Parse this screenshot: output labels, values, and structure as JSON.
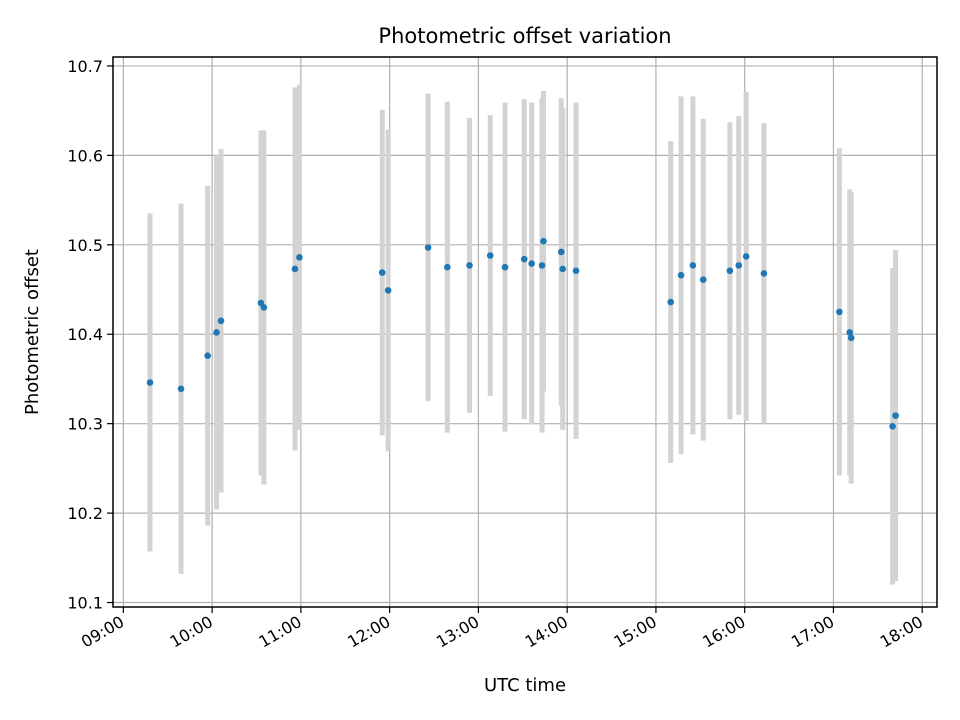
{
  "chart_data": {
    "type": "scatter",
    "title": "Photometric offset variation",
    "xlabel": "UTC time",
    "ylabel": "Photometric offset",
    "xlim": [
      "08:53",
      "18:10"
    ],
    "ylim": [
      10.095,
      10.71
    ],
    "x_ticks": [
      "09:00",
      "10:00",
      "11:00",
      "12:00",
      "13:00",
      "14:00",
      "15:00",
      "16:00",
      "17:00",
      "18:00"
    ],
    "y_ticks": [
      "10.1",
      "10.2",
      "10.3",
      "10.4",
      "10.5",
      "10.6",
      "10.7"
    ],
    "grid": true,
    "colors": {
      "points": "#1f77b4",
      "error_bars": "#d3d3d3",
      "grid": "#b0b0b0"
    },
    "series": [
      {
        "points": [
          {
            "x": "09:18",
            "y": 10.346,
            "err": 0.189
          },
          {
            "x": "09:39",
            "y": 10.339,
            "err": 0.207
          },
          {
            "x": "09:57",
            "y": 10.376,
            "err": 0.19
          },
          {
            "x": "10:03",
            "y": 10.402,
            "err": 0.198
          },
          {
            "x": "10:06",
            "y": 10.415,
            "err": 0.192
          },
          {
            "x": "10:33",
            "y": 10.435,
            "err": 0.193
          },
          {
            "x": "10:35",
            "y": 10.43,
            "err": 0.198
          },
          {
            "x": "10:56",
            "y": 10.473,
            "err": 0.203
          },
          {
            "x": "10:59",
            "y": 10.486,
            "err": 0.193
          },
          {
            "x": "11:55",
            "y": 10.469,
            "err": 0.182
          },
          {
            "x": "11:59",
            "y": 10.449,
            "err": 0.18
          },
          {
            "x": "12:26",
            "y": 10.497,
            "err": 0.172
          },
          {
            "x": "12:39",
            "y": 10.475,
            "err": 0.185
          },
          {
            "x": "12:54",
            "y": 10.477,
            "err": 0.165
          },
          {
            "x": "13:08",
            "y": 10.488,
            "err": 0.157
          },
          {
            "x": "13:18",
            "y": 10.475,
            "err": 0.184
          },
          {
            "x": "13:31",
            "y": 10.484,
            "err": 0.179
          },
          {
            "x": "13:36",
            "y": 10.479,
            "err": 0.18
          },
          {
            "x": "13:43",
            "y": 10.477,
            "err": 0.187
          },
          {
            "x": "13:44",
            "y": 10.504,
            "err": 0.168
          },
          {
            "x": "13:56",
            "y": 10.492,
            "err": 0.172
          },
          {
            "x": "13:57",
            "y": 10.473,
            "err": 0.18
          },
          {
            "x": "14:06",
            "y": 10.471,
            "err": 0.188
          },
          {
            "x": "15:10",
            "y": 10.436,
            "err": 0.18
          },
          {
            "x": "15:17",
            "y": 10.466,
            "err": 0.2
          },
          {
            "x": "15:25",
            "y": 10.477,
            "err": 0.189
          },
          {
            "x": "15:32",
            "y": 10.461,
            "err": 0.18
          },
          {
            "x": "15:50",
            "y": 10.471,
            "err": 0.166
          },
          {
            "x": "15:56",
            "y": 10.477,
            "err": 0.167
          },
          {
            "x": "16:01",
            "y": 10.487,
            "err": 0.184
          },
          {
            "x": "16:13",
            "y": 10.468,
            "err": 0.168
          },
          {
            "x": "17:04",
            "y": 10.425,
            "err": 0.183
          },
          {
            "x": "17:11",
            "y": 10.402,
            "err": 0.16
          },
          {
            "x": "17:12",
            "y": 10.396,
            "err": 0.163
          },
          {
            "x": "17:40",
            "y": 10.297,
            "err": 0.177
          },
          {
            "x": "17:42",
            "y": 10.309,
            "err": 0.185
          }
        ]
      }
    ]
  }
}
